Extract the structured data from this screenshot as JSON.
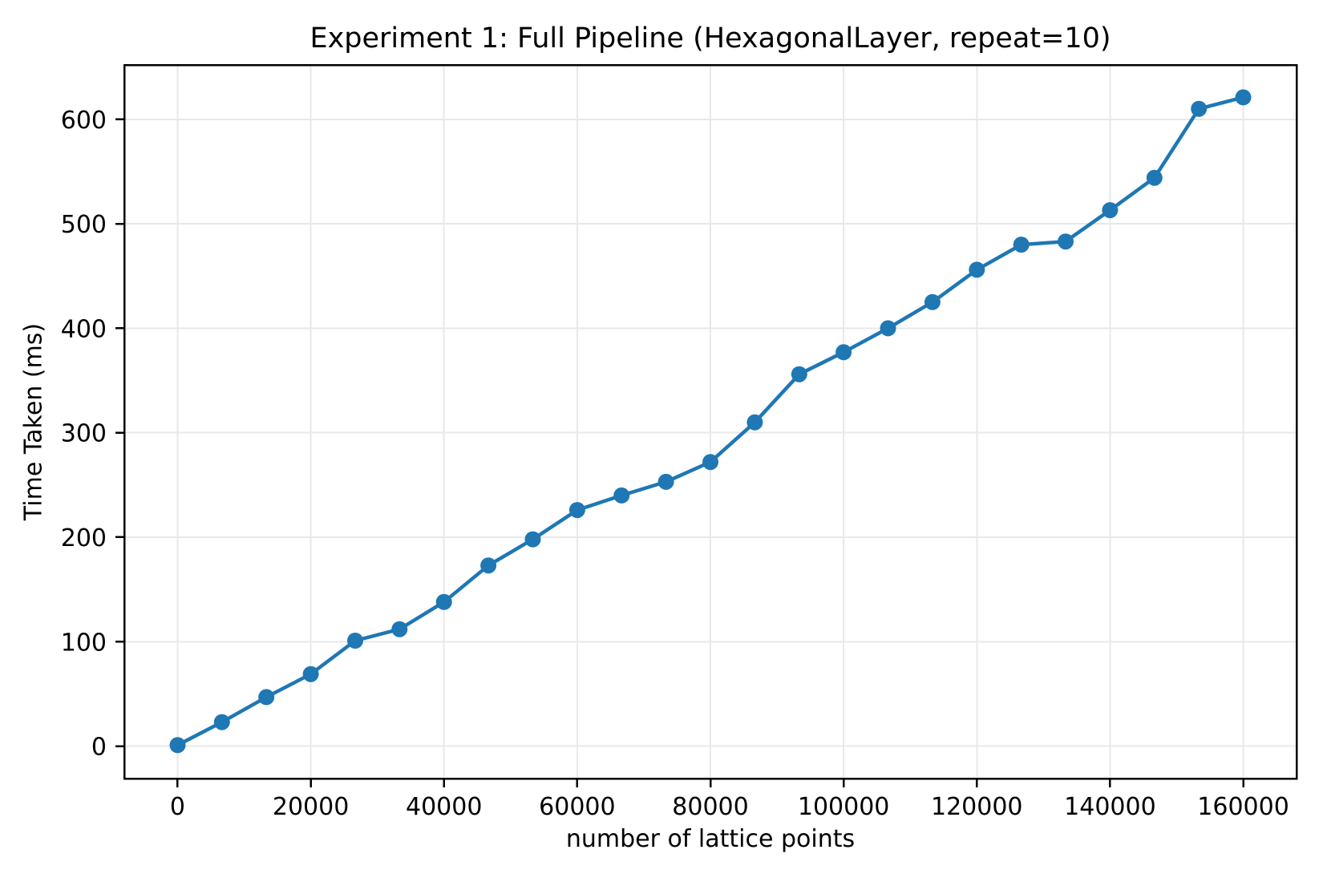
{
  "figure": {
    "title": "Experiment 1: Full Pipeline (HexagonalLayer, repeat=10)",
    "xlabel": "number of lattice points",
    "ylabel": "Time Taken (ms)"
  },
  "chart_data": {
    "type": "line",
    "title": "Experiment 1: Full Pipeline (HexagonalLayer, repeat=10)",
    "xlabel": "number of lattice points",
    "ylabel": "Time Taken (ms)",
    "series": [
      {
        "name": "time_taken_ms",
        "x": [
          0,
          6667,
          13333,
          20000,
          26667,
          33333,
          40000,
          46667,
          53333,
          60000,
          66667,
          73333,
          80000,
          86667,
          93333,
          100000,
          106667,
          113333,
          120000,
          126667,
          133333,
          140000,
          146667,
          153333,
          160000
        ],
        "y": [
          1,
          23,
          47,
          69,
          101,
          112,
          138,
          173,
          198,
          226,
          240,
          253,
          272,
          310,
          356,
          377,
          400,
          425,
          456,
          480,
          483,
          513,
          544,
          610,
          621
        ]
      }
    ],
    "xticks": [
      0,
      20000,
      40000,
      60000,
      80000,
      100000,
      120000,
      140000,
      160000
    ],
    "yticks": [
      0,
      100,
      200,
      300,
      400,
      500,
      600
    ],
    "xlim": [
      -8000,
      168000
    ],
    "ylim": [
      -31,
      652
    ],
    "grid": true,
    "legend_position": "none",
    "colors": {
      "line": "#1f77b4",
      "marker": "#1f77b4",
      "grid": "#e8e8e8",
      "axis": "#000000",
      "background": "#ffffff"
    },
    "marker": "o"
  }
}
